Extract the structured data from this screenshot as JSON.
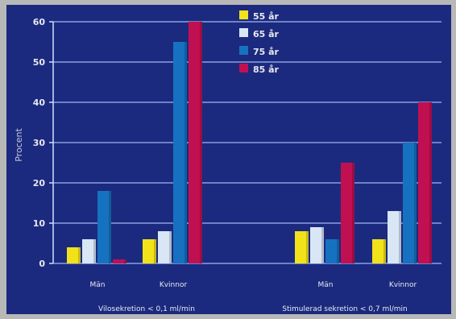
{
  "chart_data": {
    "type": "bar",
    "ylabel": "Procent",
    "ylim": [
      0,
      60
    ],
    "yticks": [
      "0",
      "10",
      "20",
      "30",
      "40",
      "50",
      "60"
    ],
    "grid": true,
    "legend_position": "top-center",
    "categories": [
      "Män",
      "Kvinnor",
      "Män",
      "Kvinnor"
    ],
    "groups": [
      "Vilosekretion < 0,1 ml/min",
      "Stimulerad sekretion < 0,7 ml/min"
    ],
    "series": [
      {
        "name": "55 år",
        "color": "#f2e21a",
        "values": [
          4,
          6,
          8,
          6
        ]
      },
      {
        "name": "65 år",
        "color": "#d8e6f6",
        "values": [
          6,
          8,
          9,
          13
        ]
      },
      {
        "name": "75 år",
        "color": "#1672c0",
        "values": [
          18,
          55,
          6,
          30
        ]
      },
      {
        "name": "85 år",
        "color": "#c01052",
        "values": [
          1,
          60,
          25,
          40
        ]
      }
    ]
  }
}
